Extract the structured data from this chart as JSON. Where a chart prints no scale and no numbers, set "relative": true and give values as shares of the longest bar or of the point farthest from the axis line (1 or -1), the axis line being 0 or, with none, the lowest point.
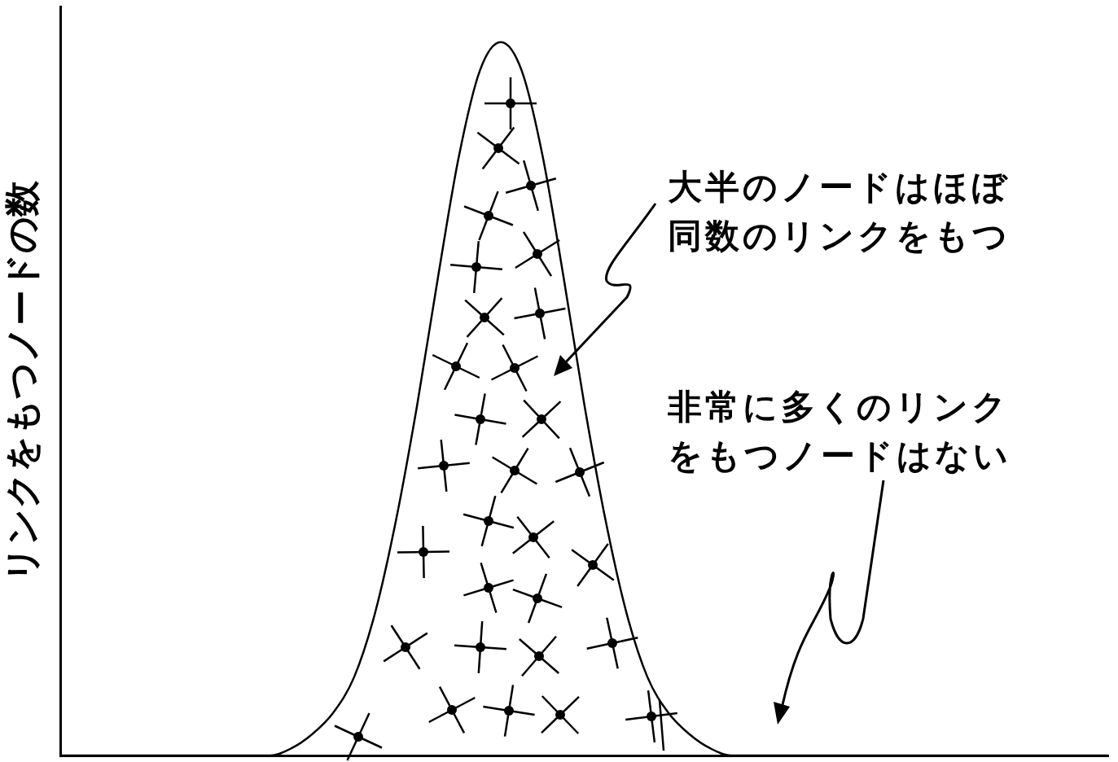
{
  "chart_data": {
    "type": "line",
    "relative": true,
    "ylabel": "リンクをもつノードの数",
    "categories": [
      null,
      null,
      null,
      null,
      null,
      null,
      null,
      null,
      null,
      null,
      null,
      null,
      null,
      null,
      null,
      null,
      null,
      null,
      null,
      null,
      null,
      null,
      null,
      null,
      null,
      null,
      null,
      null,
      null,
      null,
      null,
      null,
      null,
      null,
      null,
      null,
      null,
      null,
      null,
      null,
      null,
      null,
      null,
      null,
      null,
      null,
      null,
      null,
      null,
      null,
      null
    ],
    "series": [
      {
        "color": "#000000",
        "values": [
          0,
          0,
          0,
          0,
          0,
          0,
          0,
          0,
          0,
          0,
          0,
          0.01,
          0.03,
          0.06,
          0.11,
          0.2,
          0.33,
          0.49,
          0.67,
          0.84,
          0.96,
          1,
          0.96,
          0.84,
          0.67,
          0.49,
          0.33,
          0.2,
          0.11,
          0.06,
          0.03,
          0.01,
          0,
          0,
          0,
          0,
          0,
          0,
          0,
          0,
          0,
          0,
          0,
          0,
          0,
          0,
          0,
          0,
          0,
          0,
          0
        ]
      }
    ],
    "annotations": [
      "大半のノードはほぼ同数のリンクをもつ",
      "非常に多くのリンクをもつノードはない"
    ],
    "legend": false,
    "grid": false,
    "marker": "none"
  }
}
